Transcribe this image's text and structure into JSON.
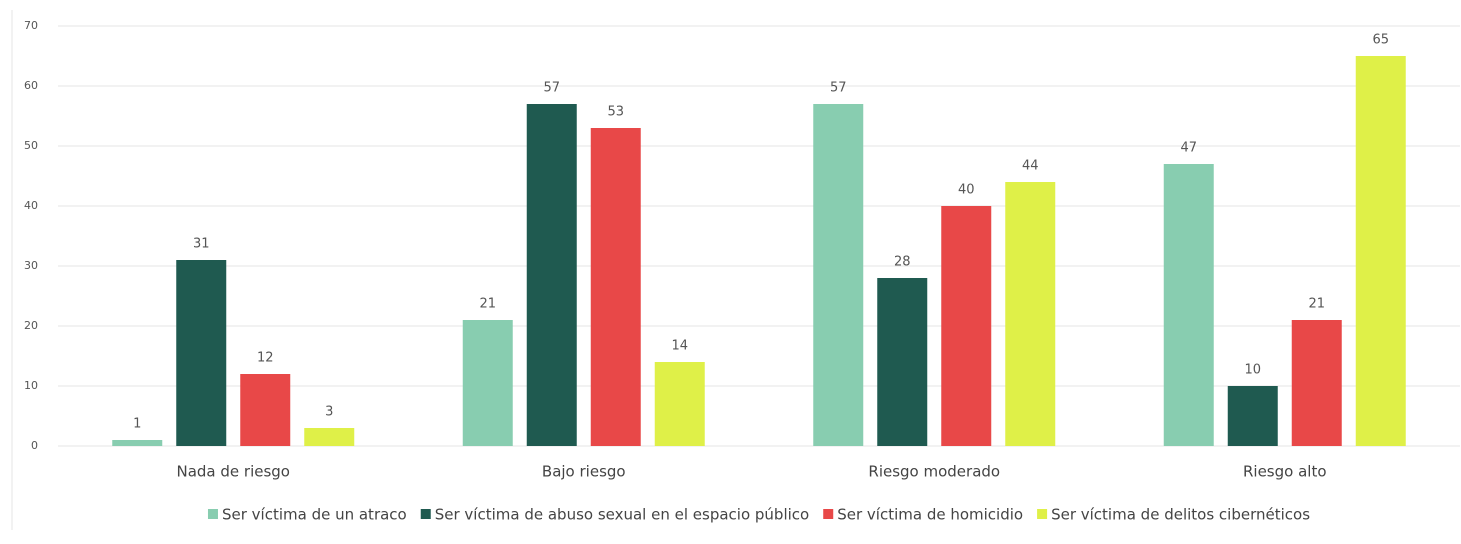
{
  "chart_data": {
    "type": "bar",
    "categories": [
      "Nada de riesgo",
      "Bajo riesgo",
      "Riesgo moderado",
      "Riesgo alto"
    ],
    "series": [
      {
        "name": "Ser víctima de un atraco",
        "color": "#88cdb0",
        "values": [
          1,
          21,
          57,
          47
        ]
      },
      {
        "name": "Ser víctima de abuso sexual en el espacio público",
        "color": "#1f5a50",
        "values": [
          31,
          57,
          28,
          10
        ]
      },
      {
        "name": "Ser víctima de homicidio",
        "color": "#e84848",
        "values": [
          12,
          53,
          40,
          21
        ]
      },
      {
        "name": "Ser víctima de delitos cibernéticos",
        "color": "#dff048",
        "values": [
          3,
          14,
          44,
          65
        ]
      }
    ],
    "ylim": [
      0,
      70
    ],
    "yticks": [
      0,
      10,
      20,
      30,
      40,
      50,
      60,
      70
    ],
    "grid": true,
    "legend": "bottom"
  }
}
